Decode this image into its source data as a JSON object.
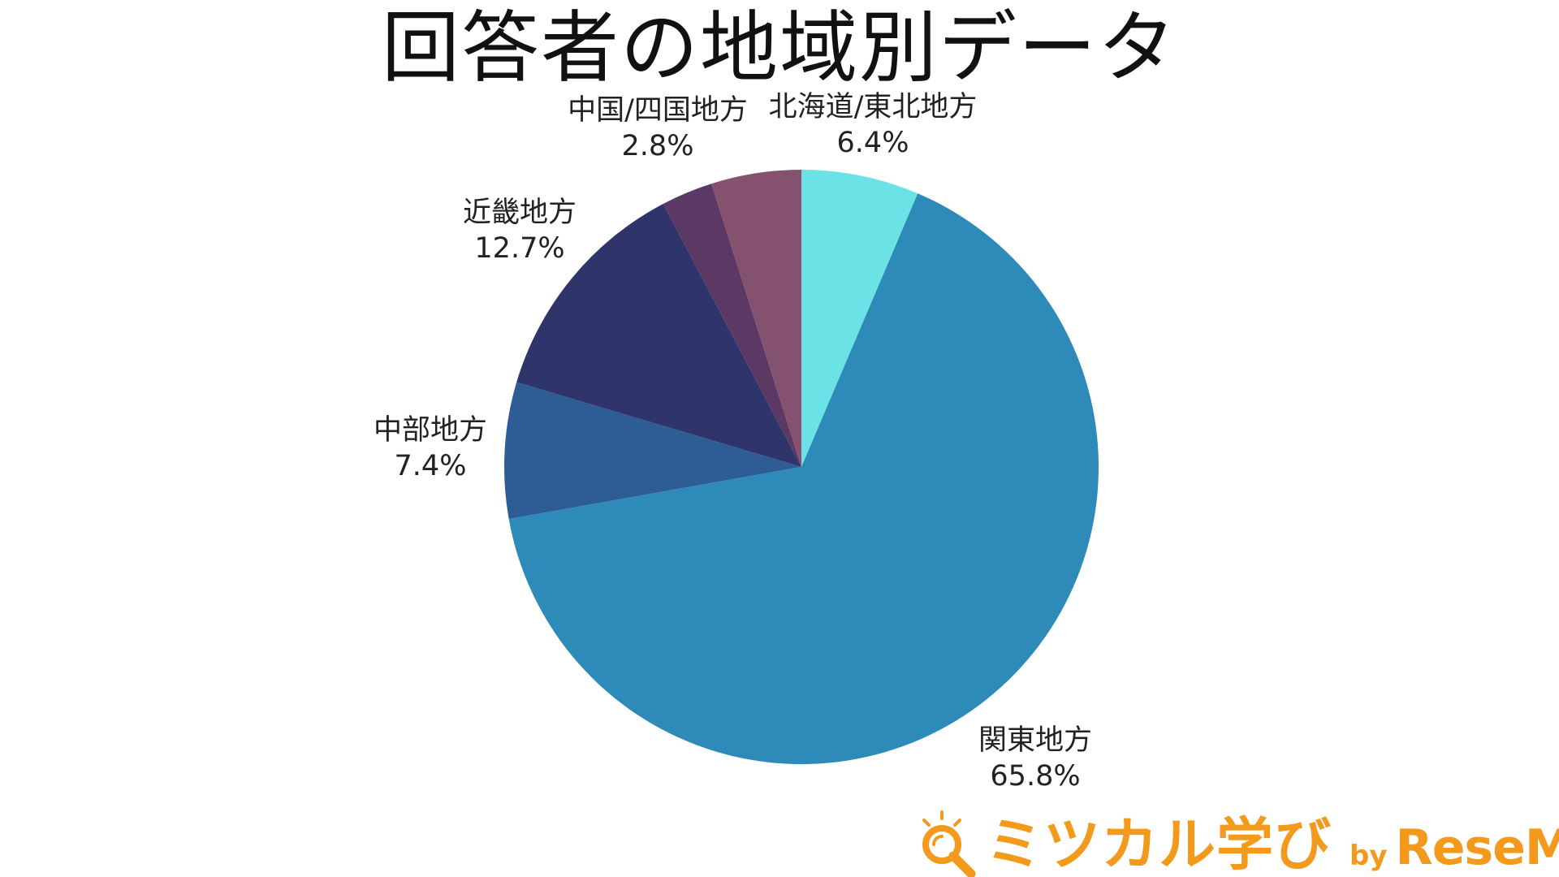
{
  "chart_data": {
    "type": "pie",
    "title": "回答者の地域別データ",
    "start_angle_deg": 0,
    "direction": "clockwise",
    "slices": [
      {
        "label": "北海道/東北地方",
        "value": 6.4,
        "value_label": "6.4%",
        "color": "#6be3e6"
      },
      {
        "label": "関東地方",
        "value": 65.8,
        "value_label": "65.8%",
        "color": "#2e8ab8"
      },
      {
        "label": "中部地方",
        "value": 7.4,
        "value_label": "7.4%",
        "color": "#2e5d96"
      },
      {
        "label": "近畿地方",
        "value": 12.7,
        "value_label": "12.7%",
        "color": "#2f346b"
      },
      {
        "label": "中国/四国地方",
        "value": 2.8,
        "value_label": "2.8%",
        "color": "#5c3965"
      },
      {
        "label": "",
        "value": 4.9,
        "value_label": "",
        "color": "#84526f"
      }
    ]
  },
  "branding": {
    "name": "ミツカル学び",
    "by": "by",
    "partner": "ReseMom",
    "color": "#f39a1c",
    "icon": "magnifier-icon"
  }
}
